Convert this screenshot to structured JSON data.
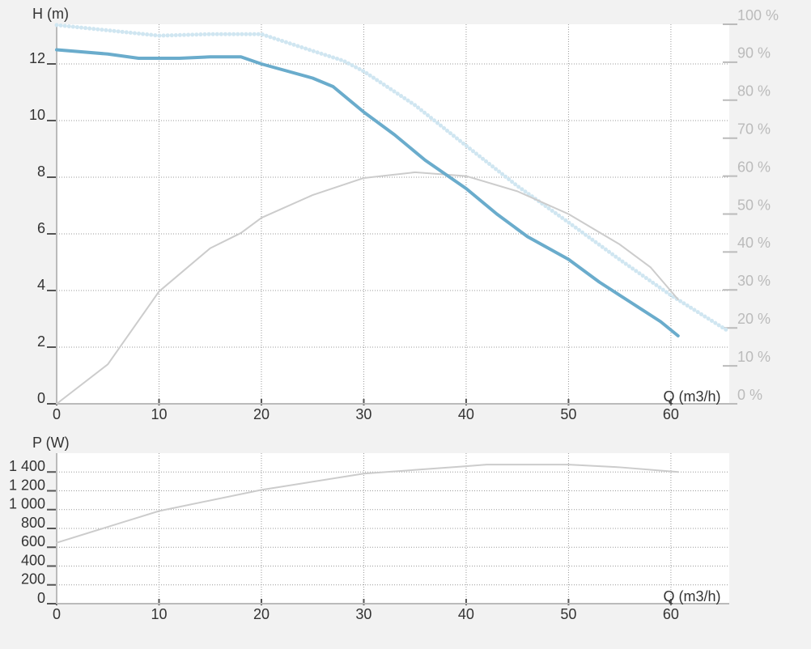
{
  "chart_data": [
    {
      "type": "line",
      "ylabel": "H (m)",
      "xlabel": "Q (m3/h)",
      "xlim": [
        0,
        65.7
      ],
      "xticks": [
        0,
        10,
        20,
        30,
        40,
        50,
        60
      ],
      "ylim": [
        0,
        13.4
      ],
      "yticks": [
        0,
        2,
        4,
        6,
        8,
        10,
        12
      ],
      "y2lim": [
        0,
        100
      ],
      "y2ticks": [
        {
          "value": 0,
          "label": "0 %"
        },
        {
          "value": 10,
          "label": "10 %"
        },
        {
          "value": 20,
          "label": "20 %"
        },
        {
          "value": 30,
          "label": "30 %"
        },
        {
          "value": 40,
          "label": "40 %"
        },
        {
          "value": 50,
          "label": "50 %"
        },
        {
          "value": 60,
          "label": "60 %"
        },
        {
          "value": 70,
          "label": "70 %"
        },
        {
          "value": 80,
          "label": "80 %"
        },
        {
          "value": 90,
          "label": "90 %"
        },
        {
          "value": 100,
          "label": "100 %"
        }
      ],
      "grid": true,
      "series": [
        {
          "color": "#d0e6f1",
          "axis": "y2",
          "line_style": "dotted",
          "x": [
            0,
            10,
            15,
            20,
            25,
            28,
            30,
            35,
            40,
            45,
            50,
            55,
            60,
            65.7
          ],
          "values": [
            99.8,
            97,
            97.4,
            97.4,
            93,
            90.4,
            87.6,
            78.7,
            68,
            57.4,
            47.8,
            38,
            28.6,
            19
          ]
        },
        {
          "color": "#cccccc",
          "axis": "y2",
          "line_style": "thin",
          "x": [
            0,
            5,
            10,
            15,
            18,
            20,
            25,
            30,
            35,
            40,
            45,
            50,
            55,
            58,
            60.7
          ],
          "values": [
            0,
            10.4,
            29.6,
            41,
            45,
            49,
            55,
            59.5,
            61,
            60,
            56,
            50,
            42,
            36,
            27.5
          ]
        },
        {
          "color": "#6aaccc",
          "line_style": "thick",
          "x": [
            0,
            5,
            8,
            12,
            15,
            18,
            20,
            22,
            25,
            27,
            30,
            33,
            36,
            40,
            43,
            46,
            50,
            53,
            56,
            59,
            60.7
          ],
          "values": [
            12.5,
            12.35,
            12.2,
            12.2,
            12.25,
            12.25,
            12.0,
            11.8,
            11.5,
            11.2,
            10.3,
            9.5,
            8.6,
            7.6,
            6.7,
            5.9,
            5.1,
            4.3,
            3.6,
            2.9,
            2.4
          ]
        }
      ]
    },
    {
      "type": "line",
      "ylabel": "P (W)",
      "xlabel": "Q (m3/h)",
      "xlim": [
        0,
        65.7
      ],
      "xticks": [
        0,
        10,
        20,
        30,
        40,
        50,
        60
      ],
      "ylim": [
        0,
        1600
      ],
      "yticks": [
        0,
        200,
        400,
        600,
        800,
        {
          "value": 1000,
          "label": "1 000"
        },
        {
          "value": 1200,
          "label": "1 200"
        },
        {
          "value": 1400,
          "label": "1 400"
        }
      ],
      "grid": true,
      "series": [
        {
          "color": "#cccccc",
          "line_style": "thin",
          "x": [
            0,
            10,
            20,
            30,
            40,
            42,
            50,
            55,
            60.7
          ],
          "values": [
            648,
            985,
            1210,
            1383,
            1461,
            1478,
            1478,
            1450,
            1400
          ]
        }
      ]
    }
  ]
}
